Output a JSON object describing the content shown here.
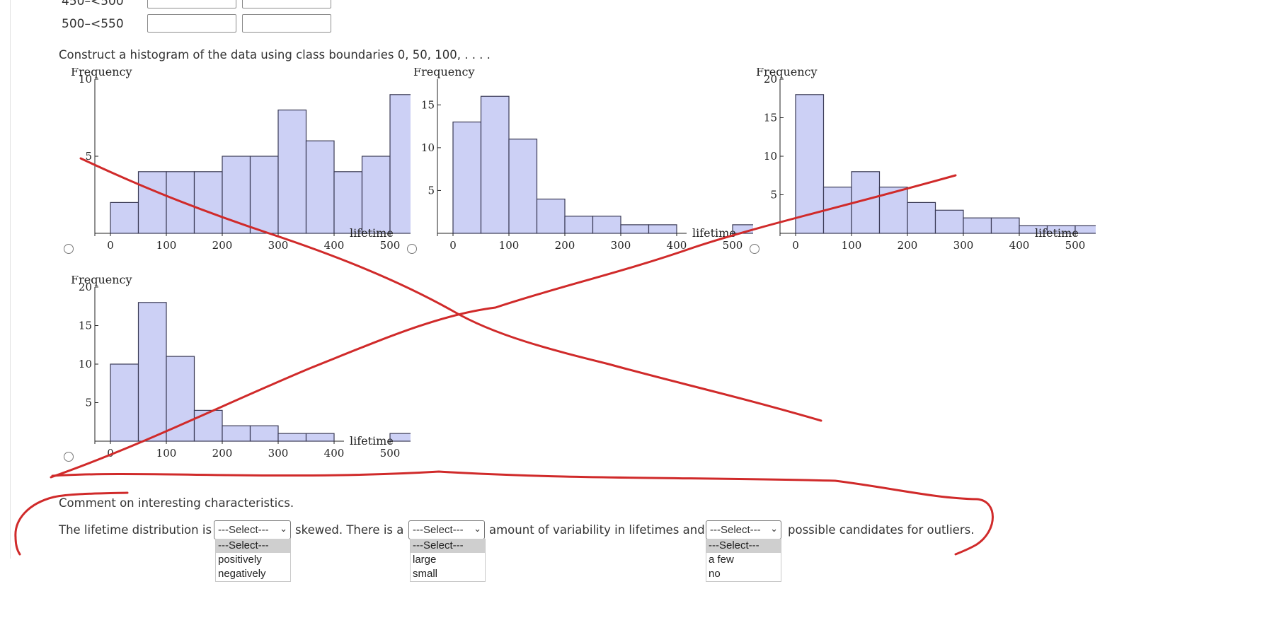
{
  "table": {
    "rows": [
      {
        "label": "450–<500"
      },
      {
        "label": "500–<550"
      }
    ]
  },
  "instruction": "Construct a histogram of the data using class boundaries 0, 50, 100, . . . .",
  "histograms": [
    {
      "ylabel": "Frequency",
      "xlabel": "lifetime",
      "ymax_label": "10",
      "yticks": [
        "5"
      ],
      "xticks": [
        "0",
        "100",
        "200",
        "300",
        "400",
        "500"
      ],
      "ymax": 10,
      "frequencies": [
        2,
        4,
        4,
        4,
        5,
        5,
        8,
        6,
        4,
        5,
        9
      ]
    },
    {
      "ylabel": "Frequency",
      "xlabel": "lifetime",
      "ymax_label": "",
      "yticks": [
        "5",
        "10",
        "15"
      ],
      "xticks": [
        "0",
        "100",
        "200",
        "300",
        "400",
        "500"
      ],
      "ymax": 18,
      "frequencies": [
        13,
        16,
        11,
        4,
        2,
        2,
        1,
        1,
        0,
        0,
        1
      ]
    },
    {
      "ylabel": "Frequency",
      "xlabel": "lifetime",
      "ymax_label": "20",
      "yticks": [
        "5",
        "10",
        "15"
      ],
      "xticks": [
        "0",
        "100",
        "200",
        "300",
        "400",
        "500"
      ],
      "ymax": 20,
      "frequencies": [
        18,
        6,
        8,
        6,
        4,
        3,
        2,
        2,
        1,
        1,
        1
      ]
    },
    {
      "ylabel": "Frequency",
      "xlabel": "lifetime",
      "ymax_label": "20",
      "yticks": [
        "5",
        "10",
        "15"
      ],
      "xticks": [
        "0",
        "100",
        "200",
        "300",
        "400",
        "500"
      ],
      "ymax": 20,
      "frequencies": [
        10,
        18,
        11,
        4,
        2,
        2,
        1,
        1,
        0,
        0,
        1
      ]
    }
  ],
  "comment": {
    "heading": "Comment on interesting characteristics.",
    "part1": "The lifetime distribution is",
    "part2": "skewed. There is a",
    "part3": "amount of variability in lifetimes and",
    "part4": "possible candidates for outliers.",
    "select1": {
      "value": "---Select---",
      "options": [
        "---Select---",
        "positively",
        "negatively"
      ]
    },
    "select2": {
      "value": "---Select---",
      "options": [
        "---Select---",
        "large",
        "small"
      ]
    },
    "select3": {
      "value": "---Select---",
      "options": [
        "---Select---",
        "a few",
        "no"
      ]
    }
  },
  "colors": {
    "bar_fill": "#ccd0f5",
    "ink": "#d02a2a"
  }
}
